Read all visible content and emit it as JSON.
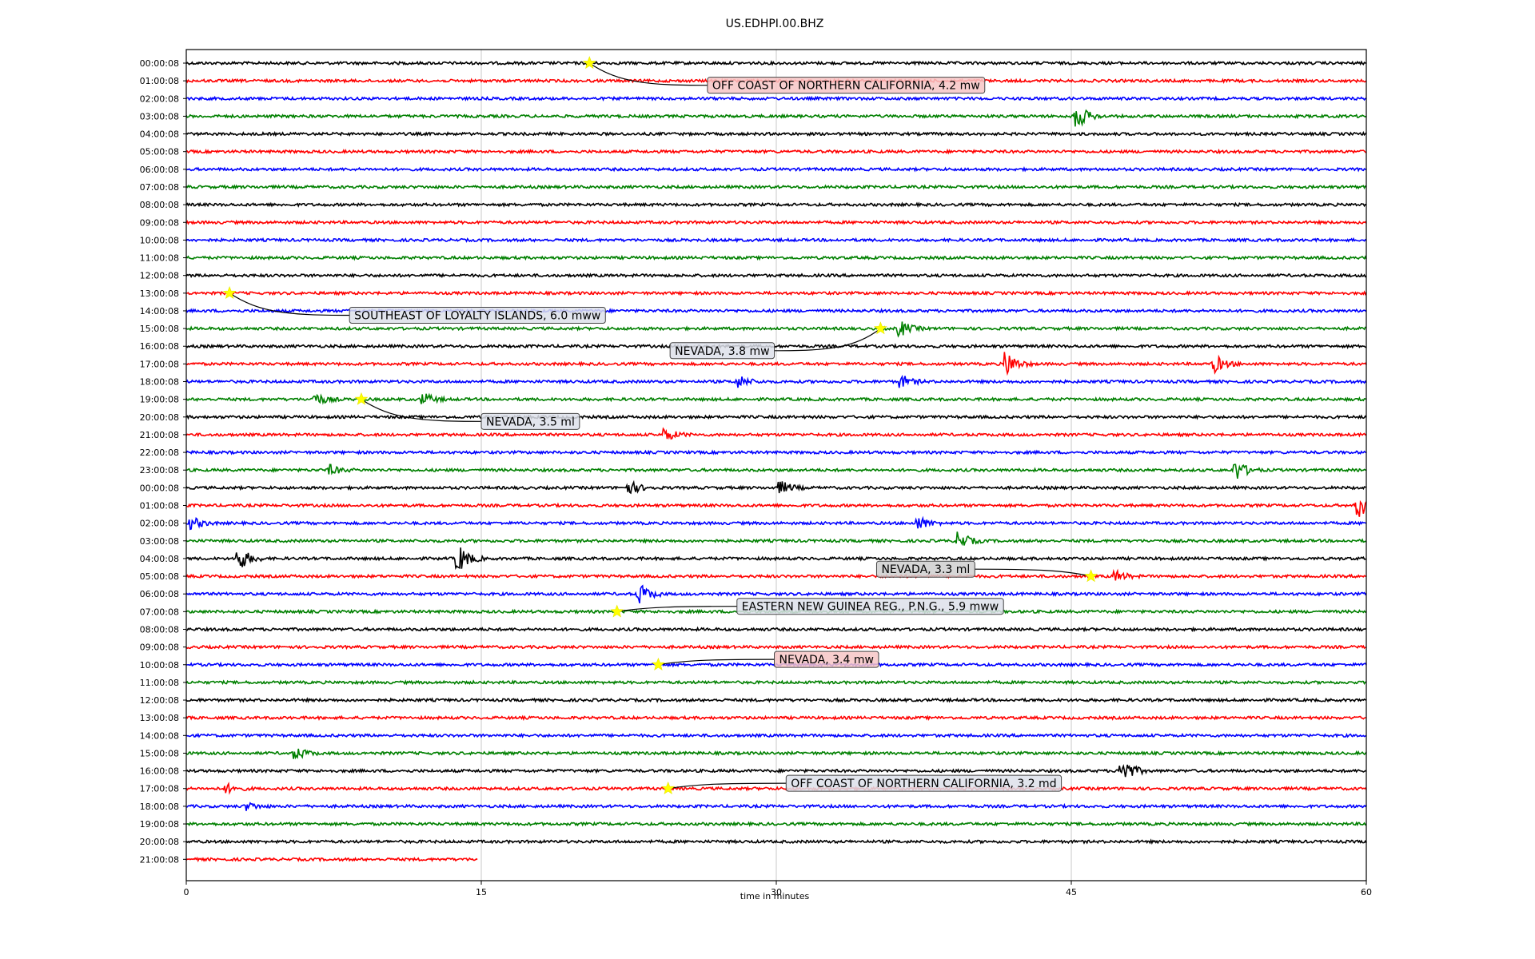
{
  "chart_data": {
    "type": "line",
    "title": "US.EDHPI.00.BHZ",
    "xlabel": "time in minutes",
    "ylabel": "",
    "xlim": [
      0,
      60
    ],
    "x_ticks": [
      0,
      15,
      30,
      45,
      60
    ],
    "grid": true,
    "trace_colors": [
      "#000000",
      "#ff0000",
      "#0000ff",
      "#008000"
    ],
    "row_labels": [
      "00:00:08",
      "01:00:08",
      "02:00:08",
      "03:00:08",
      "04:00:08",
      "05:00:08",
      "06:00:08",
      "07:00:08",
      "08:00:08",
      "09:00:08",
      "10:00:08",
      "11:00:08",
      "12:00:08",
      "13:00:08",
      "14:00:08",
      "15:00:08",
      "16:00:08",
      "17:00:08",
      "18:00:08",
      "19:00:08",
      "20:00:08",
      "21:00:08",
      "22:00:08",
      "23:00:08",
      "00:00:08",
      "01:00:08",
      "02:00:08",
      "03:00:08",
      "04:00:08",
      "05:00:08",
      "06:00:08",
      "07:00:08",
      "08:00:08",
      "09:00:08",
      "10:00:08",
      "11:00:08",
      "12:00:08",
      "13:00:08",
      "14:00:08",
      "15:00:08",
      "16:00:08",
      "17:00:08",
      "18:00:08",
      "19:00:08",
      "20:00:08",
      "21:00:08"
    ],
    "last_row_end_minute": 14.8,
    "bursts": [
      {
        "row": 3,
        "minute": 45.2,
        "amp": 1.3
      },
      {
        "row": 15,
        "minute": 36.2,
        "amp": 0.8
      },
      {
        "row": 17,
        "minute": 41.6,
        "amp": 1.3
      },
      {
        "row": 17,
        "minute": 52.2,
        "amp": 0.9
      },
      {
        "row": 18,
        "minute": 28.0,
        "amp": 0.6
      },
      {
        "row": 18,
        "minute": 36.3,
        "amp": 0.6
      },
      {
        "row": 19,
        "minute": 6.5,
        "amp": 0.6
      },
      {
        "row": 19,
        "minute": 12.0,
        "amp": 0.6
      },
      {
        "row": 21,
        "minute": 24.3,
        "amp": 0.6
      },
      {
        "row": 23,
        "minute": 53.3,
        "amp": 1.0
      },
      {
        "row": 23,
        "minute": 7.2,
        "amp": 0.5
      },
      {
        "row": 24,
        "minute": 22.5,
        "amp": 0.6
      },
      {
        "row": 24,
        "minute": 30.2,
        "amp": 0.6
      },
      {
        "row": 25,
        "minute": 59.5,
        "amp": 1.3
      },
      {
        "row": 26,
        "minute": 0.2,
        "amp": 0.6
      },
      {
        "row": 26,
        "minute": 37.2,
        "amp": 0.6
      },
      {
        "row": 27,
        "minute": 39.2,
        "amp": 0.9
      },
      {
        "row": 28,
        "minute": 2.6,
        "amp": 1.2
      },
      {
        "row": 28,
        "minute": 13.8,
        "amp": 1.3
      },
      {
        "row": 29,
        "minute": 47.2,
        "amp": 0.5
      },
      {
        "row": 30,
        "minute": 23.0,
        "amp": 1.0
      },
      {
        "row": 39,
        "minute": 5.5,
        "amp": 0.6
      },
      {
        "row": 40,
        "minute": 47.5,
        "amp": 1.4
      },
      {
        "row": 41,
        "minute": 2.0,
        "amp": 0.4
      },
      {
        "row": 42,
        "minute": 3.0,
        "amp": 0.4
      }
    ],
    "events": [
      {
        "row": 0,
        "minute": 20.5,
        "label": "OFF COAST OF NORTHERN CALIFORNIA, 4.2 mw",
        "label_row": 1.25,
        "label_minute": 26.5,
        "box_color": "#f7c6c6"
      },
      {
        "row": 13,
        "minute": 2.2,
        "label": "SOUTHEAST OF LOYALTY ISLANDS, 6.0 mww",
        "label_row": 14.25,
        "label_minute": 8.3,
        "box_color": "#dde0ea"
      },
      {
        "row": 15,
        "minute": 35.3,
        "label": "NEVADA, 3.8 mw",
        "label_row": 16.25,
        "label_minute": 24.6,
        "box_color": "#dde0ea"
      },
      {
        "row": 19,
        "minute": 8.9,
        "label": "NEVADA, 3.5 ml",
        "label_row": 20.25,
        "label_minute": 15.0,
        "box_color": "#dde0ea"
      },
      {
        "row": 29,
        "minute": 46.0,
        "label": "NEVADA, 3.3 ml",
        "label_row": 28.6,
        "label_minute": 35.1,
        "box_color": "#cfcfcf"
      },
      {
        "row": 31,
        "minute": 21.9,
        "label": "EASTERN NEW GUINEA REG., P.N.G., 5.9 mww",
        "label_row": 30.7,
        "label_minute": 28.0,
        "box_color": "#dde0ea"
      },
      {
        "row": 34,
        "minute": 24.0,
        "label": "NEVADA, 3.4 mw",
        "label_row": 33.7,
        "label_minute": 29.9,
        "box_color": "#f7c6c6"
      },
      {
        "row": 41,
        "minute": 24.5,
        "label": "OFF COAST OF NORTHERN CALIFORNIA, 3.2 md",
        "label_row": 40.7,
        "label_minute": 30.5,
        "box_color": "#dde0ea"
      }
    ]
  }
}
